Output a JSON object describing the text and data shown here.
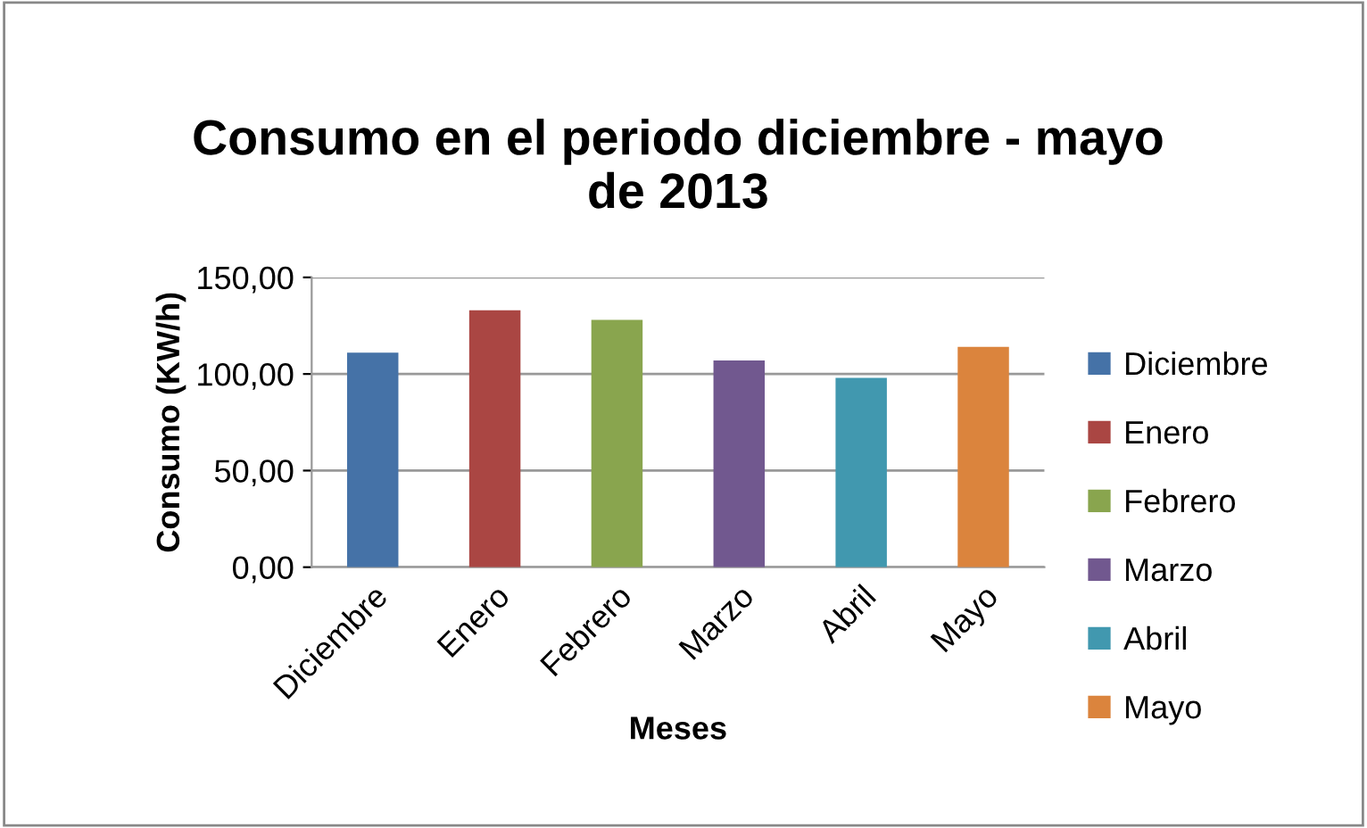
{
  "chart_data": {
    "type": "bar",
    "title": "Consumo en el periodo diciembre - mayo\nde 2013",
    "xlabel": "Meses",
    "ylabel": "Consumo (KW/h)",
    "categories": [
      "Diciembre",
      "Enero",
      "Febrero",
      "Marzo",
      "Abril",
      "Mayo"
    ],
    "series": [
      {
        "name": "Diciembre",
        "color": "#4572a7",
        "values": [
          111,
          null,
          null,
          null,
          null,
          null
        ]
      },
      {
        "name": "Enero",
        "color": "#aa4643",
        "values": [
          null,
          133,
          null,
          null,
          null,
          null
        ]
      },
      {
        "name": "Febrero",
        "color": "#89a54e",
        "values": [
          null,
          null,
          128,
          null,
          null,
          null
        ]
      },
      {
        "name": "Marzo",
        "color": "#71588f",
        "values": [
          null,
          null,
          null,
          107,
          null,
          null
        ]
      },
      {
        "name": "Abril",
        "color": "#4198af",
        "values": [
          null,
          null,
          null,
          null,
          98,
          null
        ]
      },
      {
        "name": "Mayo",
        "color": "#db843d",
        "values": [
          null,
          null,
          null,
          null,
          null,
          114
        ]
      }
    ],
    "ylim": [
      0,
      150
    ],
    "yticks": [
      {
        "value": 0,
        "label": "0,00"
      },
      {
        "value": 50,
        "label": "50,00"
      },
      {
        "value": 100,
        "label": "100,00"
      },
      {
        "value": 150,
        "label": "150,00"
      }
    ],
    "grid": "y",
    "legend": "right"
  }
}
